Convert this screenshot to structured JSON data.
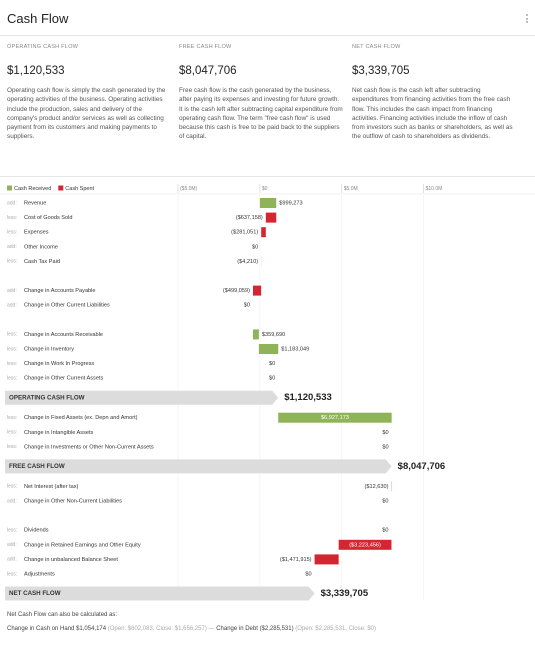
{
  "header": {
    "title": "Cash Flow"
  },
  "summary": [
    {
      "label": "OPERATING CASH FLOW",
      "value": "$1,120,533",
      "description": "Operating cash flow is simply the cash generated by the operating activities of the business. Operating activities include the production, sales and delivery of the company's product and/or services as well as collecting payment from its customers and making payments to suppliers."
    },
    {
      "label": "FREE CASH FLOW",
      "value": "$8,047,706",
      "description": "Free cash flow is the cash generated by the business, after paying its expenses and investing for future growth. It is the cash left after subtracting capital expenditure from operating cash flow. The term \"free cash flow\" is used because this cash is free to be paid back to the suppliers of capital."
    },
    {
      "label": "NET CASH FLOW",
      "value": "$3,339,705",
      "description": "Net cash flow is the cash left after subtracting expenditures from financing activities from the free cash flow. This includes the cash impact from financing activities. Financing activities include the inflow of cash from investors such as banks or shareholders, as well as the outflow of cash to shareholders as dividends."
    }
  ],
  "chart_data": {
    "type": "waterfall",
    "legend": [
      {
        "name": "Cash Received",
        "color": "#8fb458"
      },
      {
        "name": "Cash Spent",
        "color": "#d32630"
      }
    ],
    "xlim": [
      -6100000,
      11000000
    ],
    "xticks": [
      {
        "value": -5000000,
        "label": "($5.0M)"
      },
      {
        "value": 0,
        "label": "$0"
      },
      {
        "value": 5000000,
        "label": "$5.0M"
      },
      {
        "value": 10000000,
        "label": "$10.0M"
      }
    ],
    "sections": [
      {
        "groups": [
          {
            "prefixes": [
              "add:",
              "less:",
              "less:",
              "add:",
              "less:"
            ],
            "categories": [
              "Revenue",
              "Cost of Goods Sold",
              "Expenses",
              "Other Income",
              "Cash Tax Paid"
            ],
            "values": [
              999273,
              -637158,
              -281051,
              0,
              -4210
            ],
            "value_labels": [
              "$999,273",
              "($637,158)",
              "($281,051)",
              "$0",
              "($4,210)"
            ]
          },
          {
            "prefixes": [
              "add:",
              "add:"
            ],
            "categories": [
              "Change in Accounts Payable",
              "Change in Other Current Liabilities"
            ],
            "values": [
              -499059,
              0
            ],
            "value_labels": [
              "($499,059)",
              "$0"
            ]
          },
          {
            "prefixes": [
              "less:",
              "less:",
              "less:",
              "less:"
            ],
            "categories": [
              "Change in Accounts Receivable",
              "Change in Inventory",
              "Change in Work In Progress",
              "Change in Other Current Assets"
            ],
            "values": [
              359690,
              1183049,
              0,
              0
            ],
            "value_labels": [
              "$359,690",
              "$1,183,049",
              "$0",
              "$0"
            ]
          }
        ],
        "total": {
          "name": "OPERATING CASH FLOW",
          "value": 1120533,
          "value_label": "$1,120,533"
        }
      },
      {
        "groups": [
          {
            "prefixes": [
              "less:",
              "less:",
              "less:"
            ],
            "categories": [
              "Change in Fixed Assets (ex. Depn and Amort)",
              "Change in Intangible Assets",
              "Change in Investments or Other Non-Current Assets"
            ],
            "values": [
              6927173,
              0,
              0
            ],
            "value_labels": [
              "$6,927,173",
              "$0",
              "$0"
            ]
          }
        ],
        "total": {
          "name": "FREE CASH FLOW",
          "value": 8047706,
          "value_label": "$8,047,706"
        }
      },
      {
        "groups": [
          {
            "prefixes": [
              "less:",
              "add:"
            ],
            "categories": [
              "Net Interest (after tax)",
              "Change in Other Non-Current Liabilities"
            ],
            "values": [
              -12630,
              0
            ],
            "value_labels": [
              "($12,630)",
              "$0"
            ]
          },
          {
            "prefixes": [
              "less:",
              "add:",
              "add:",
              "less:"
            ],
            "categories": [
              "Dividends",
              "Change in Retained Earnings and Other Equity",
              "Change in unbalanced Balance Sheet",
              "Adjustments"
            ],
            "values": [
              0,
              -3223456,
              -1471915,
              0
            ],
            "value_labels": [
              "$0",
              "($3,223,456)",
              "($1,471,915)",
              "$0"
            ]
          }
        ],
        "total": {
          "name": "NET CASH FLOW",
          "value": 3339705,
          "value_label": "$3,339,705"
        }
      }
    ]
  },
  "footer": {
    "note": "Net Cash Flow can also be calculated as:",
    "cash_label": "Change in Cash on Hand",
    "cash_value": "$1,054,174",
    "cash_detail": "(Open: $602,083, Close: $1,656,257)",
    "separator": "—",
    "debt_label": "Change in Debt",
    "debt_value": "($2,285,531)",
    "debt_detail": "(Open: $2,285,531, Close: $0)"
  }
}
